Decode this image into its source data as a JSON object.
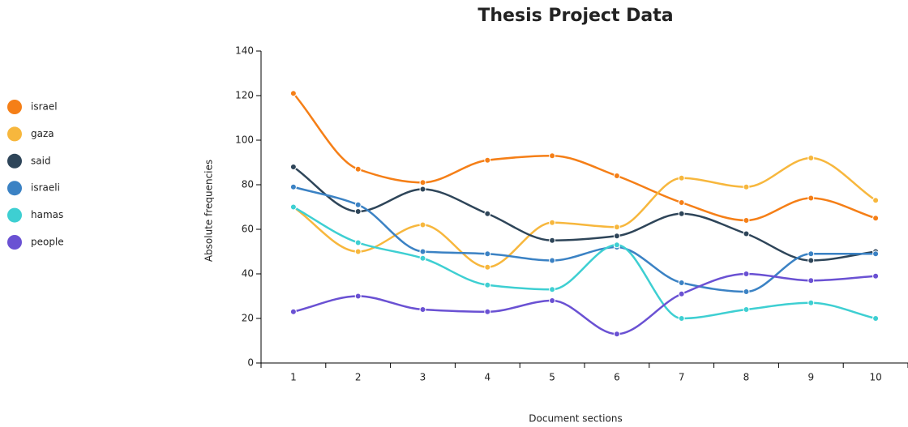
{
  "chart_data": {
    "type": "line",
    "title": "Thesis Project Data",
    "x_label": "Document sections",
    "y_label": "Absolute frequencies",
    "categories": [
      "1",
      "2",
      "3",
      "4",
      "5",
      "6",
      "7",
      "8",
      "9",
      "10"
    ],
    "series": [
      {
        "name": "israel",
        "color": "#f57f17",
        "values": [
          121,
          87,
          81,
          91,
          93,
          84,
          72,
          64,
          74,
          65
        ]
      },
      {
        "name": "gaza",
        "color": "#f7b73d",
        "values": [
          70,
          50,
          62,
          43,
          63,
          61,
          83,
          79,
          92,
          73
        ]
      },
      {
        "name": "said",
        "color": "#2e4559",
        "values": [
          88,
          68,
          78,
          67,
          55,
          57,
          67,
          58,
          46,
          50
        ]
      },
      {
        "name": "israeli",
        "color": "#3b82c4",
        "values": [
          79,
          71,
          50,
          49,
          46,
          52,
          36,
          32,
          49,
          49
        ]
      },
      {
        "name": "hamas",
        "color": "#3ecfd2",
        "values": [
          70,
          54,
          47,
          35,
          33,
          53,
          20,
          24,
          27,
          20
        ]
      },
      {
        "name": "people",
        "color": "#6a51d3",
        "values": [
          23,
          30,
          24,
          23,
          28,
          13,
          31,
          40,
          37,
          39
        ]
      }
    ],
    "ylim": [
      0,
      140
    ],
    "yticks": [
      0,
      20,
      40,
      60,
      80,
      100,
      120,
      140
    ],
    "legend": "left"
  }
}
